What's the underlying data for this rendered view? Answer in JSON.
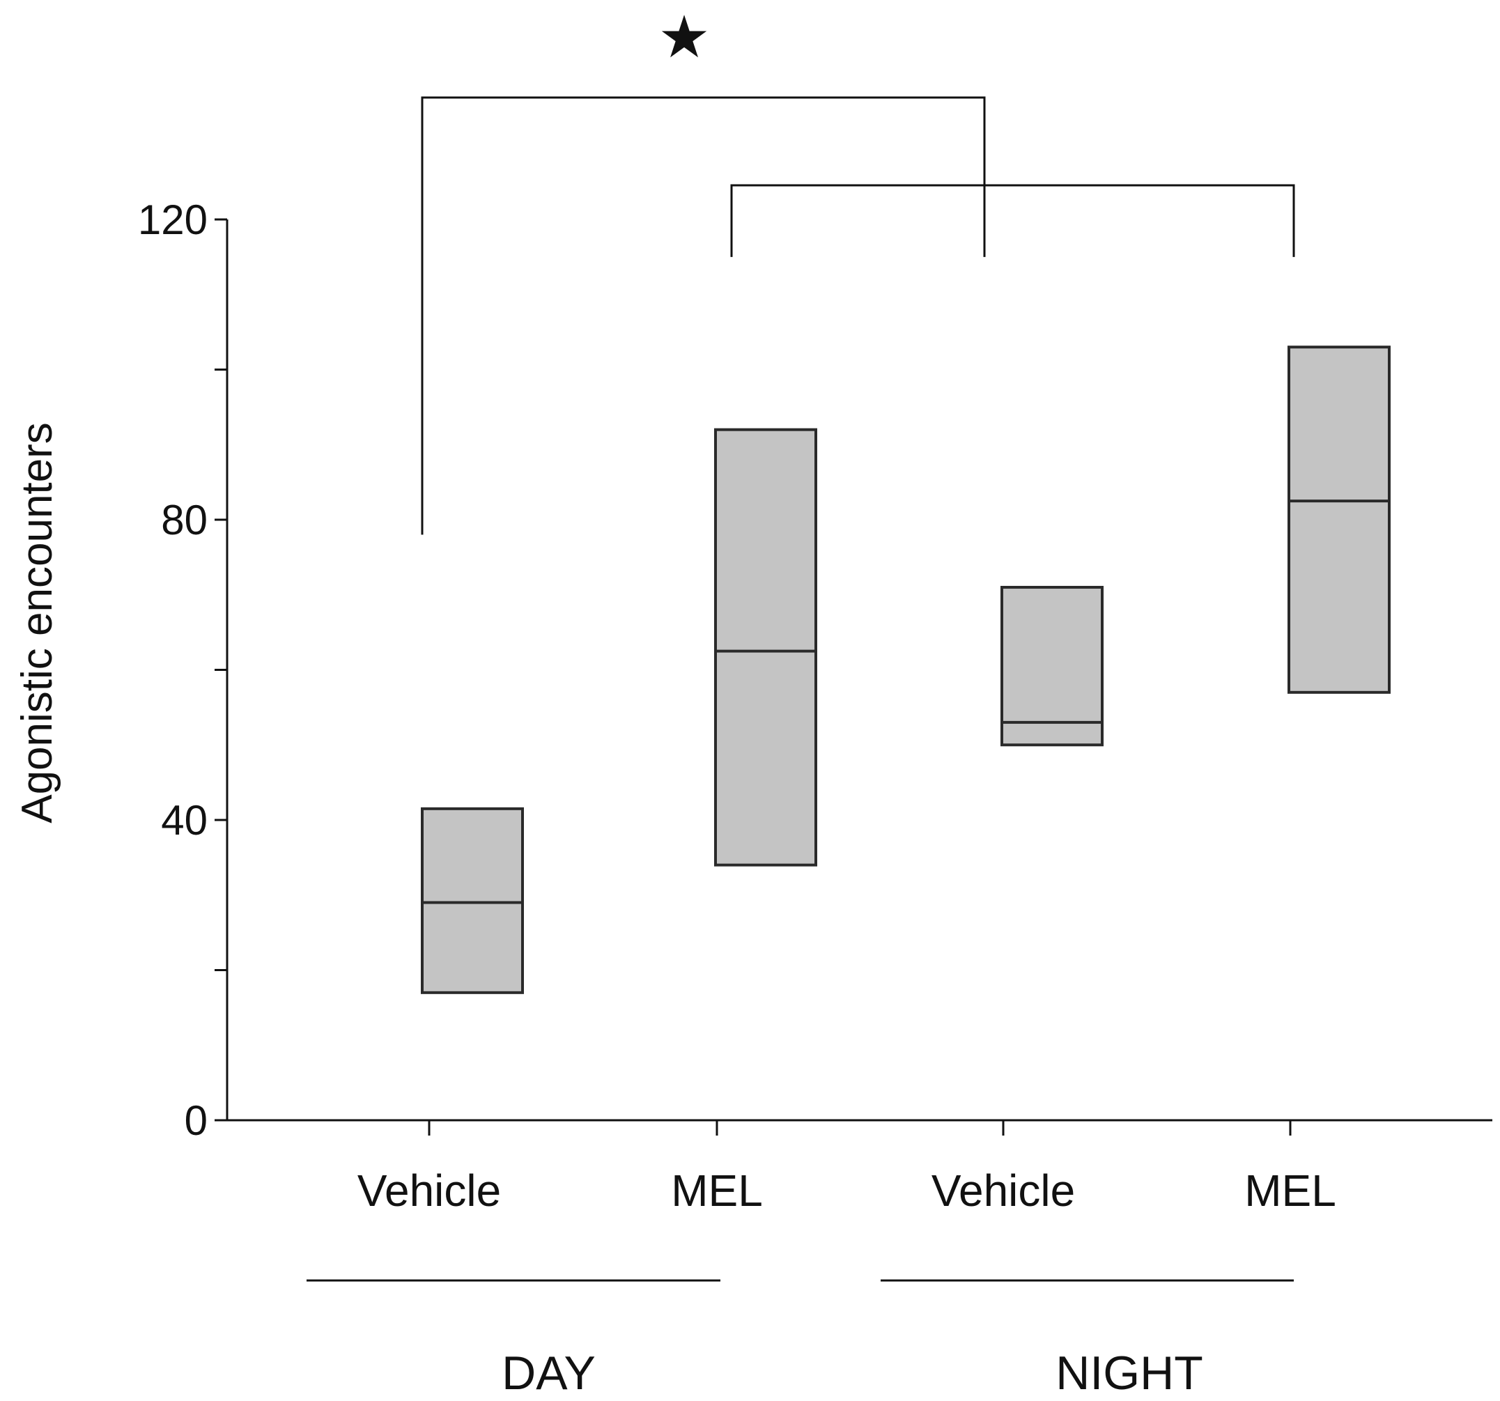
{
  "chart_data": {
    "type": "box",
    "ylabel": "Agonistic encounters",
    "ylim": [
      0,
      120
    ],
    "yticks_labeled": [
      0,
      40,
      80,
      120
    ],
    "yticks_minor": [
      20,
      60,
      100
    ],
    "categories": [
      "Vehicle",
      "MEL",
      "Vehicle",
      "MEL"
    ],
    "groups": [
      {
        "label": "DAY",
        "members": [
          0,
          1
        ]
      },
      {
        "label": "NIGHT",
        "members": [
          2,
          3
        ]
      }
    ],
    "boxes": [
      {
        "category": "Vehicle",
        "group": "DAY",
        "q1": 17,
        "median": 29,
        "q3": 41.5
      },
      {
        "category": "MEL",
        "group": "DAY",
        "q1": 34,
        "median": 62.5,
        "q3": 92
      },
      {
        "category": "Vehicle",
        "group": "NIGHT",
        "q1": 50,
        "median": 53,
        "q3": 71
      },
      {
        "category": "MEL",
        "group": "NIGHT",
        "q1": 57,
        "median": 82.5,
        "q3": 103
      }
    ],
    "significance": [
      {
        "from_group": "DAY",
        "to_group": "NIGHT",
        "label": "★"
      }
    ],
    "colors": {
      "box_fill": "#c4c4c4",
      "box_stroke": "#2a2a2a",
      "axis": "#111111"
    }
  }
}
